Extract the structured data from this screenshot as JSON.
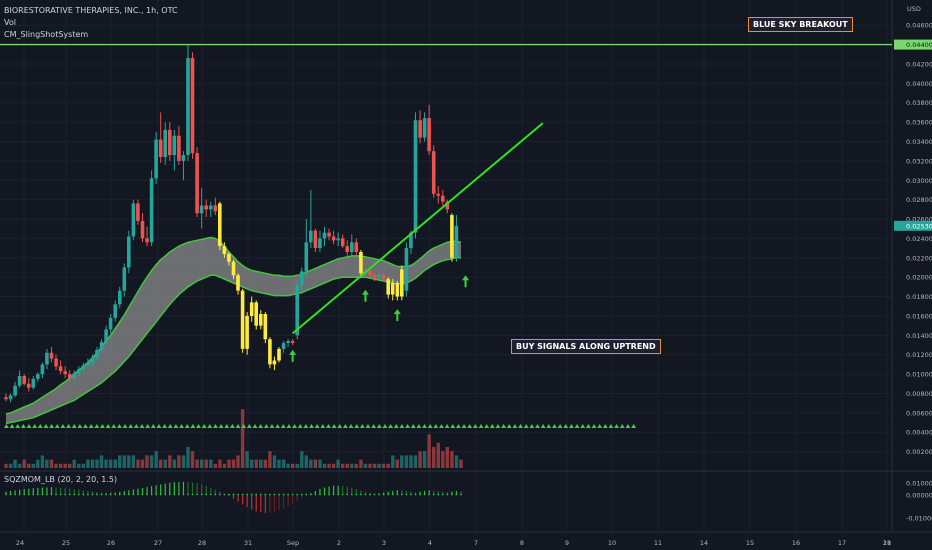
{
  "header": {
    "symbol_line": "BIORESTORATIVE THERAPIES, INC., 1h, OTC",
    "indicator_vol": "Vol",
    "indicator_sling": "CM_SlingShotSystem",
    "currency": "USD"
  },
  "annotations": {
    "top_right": "BLUE SKY BREAKOUT",
    "middle": "BUY SIGNALS ALONG UPTREND"
  },
  "lower_pane": {
    "label": "SQZMOM_LB (20, 2, 20, 1.5)",
    "ticks": [
      "0.010000",
      "0.000000",
      "-0.010000"
    ]
  },
  "colors": {
    "background": "#131722",
    "up": "#26a69a",
    "down": "#ef5350",
    "signal": "#ffeb3b",
    "band_fill": "#8c8c8c",
    "band_edge": "#43c43f",
    "trend": "#34e01f",
    "resistance": "#7ad66e",
    "price_tag": "#26a69a",
    "triangle": "#3ad33a"
  },
  "chart_data": {
    "type": "candlestick",
    "title": "",
    "x_ticks": [
      "24",
      "25",
      "26",
      "27",
      "28",
      "31",
      "Sep",
      "2",
      "3",
      "4",
      "7",
      "8",
      "9",
      "10",
      "11",
      "14",
      "15",
      "16",
      "17",
      "18",
      "21"
    ],
    "y_ticks": [
      "0.046000",
      "0.044000",
      "0.042000",
      "0.040000",
      "0.038000",
      "0.036000",
      "0.034000",
      "0.032000",
      "0.030000",
      "0.028000",
      "0.026000",
      "0.024000",
      "0.022000",
      "0.020000",
      "0.018000",
      "0.016000",
      "0.014000",
      "0.012000",
      "0.010000",
      "0.008000",
      "0.006000",
      "0.004000",
      "0.002000"
    ],
    "ylim": [
      0.0,
      0.0486
    ],
    "resistance_level": 0.044,
    "resistance_label": "0.044000",
    "last_price_label": "0.025300",
    "candles": [
      [
        0.0076,
        0.008,
        0.0072,
        0.0074,
        "n"
      ],
      [
        0.0074,
        0.008,
        0.0071,
        0.0078,
        "n"
      ],
      [
        0.0078,
        0.0092,
        0.0076,
        0.0088,
        "n"
      ],
      [
        0.0088,
        0.0104,
        0.0086,
        0.0098,
        "n"
      ],
      [
        0.0098,
        0.01,
        0.0088,
        0.009,
        "n"
      ],
      [
        0.009,
        0.0096,
        0.0082,
        0.0086,
        "n"
      ],
      [
        0.0086,
        0.0098,
        0.0084,
        0.0095,
        "n"
      ],
      [
        0.0095,
        0.0102,
        0.0092,
        0.01,
        "n"
      ],
      [
        0.01,
        0.0112,
        0.0096,
        0.011,
        "n"
      ],
      [
        0.011,
        0.0126,
        0.0105,
        0.0122,
        "n"
      ],
      [
        0.0122,
        0.0128,
        0.0112,
        0.0116,
        "n"
      ],
      [
        0.0116,
        0.012,
        0.0104,
        0.0108,
        "n"
      ],
      [
        0.0108,
        0.0114,
        0.01,
        0.0103,
        "n"
      ],
      [
        0.0103,
        0.0108,
        0.0096,
        0.01,
        "n"
      ],
      [
        0.01,
        0.0104,
        0.0092,
        0.0096,
        "n"
      ],
      [
        0.0096,
        0.0104,
        0.0093,
        0.0101,
        "n"
      ],
      [
        0.0101,
        0.0108,
        0.0098,
        0.0105,
        "n"
      ],
      [
        0.0105,
        0.0112,
        0.0102,
        0.0109,
        "n"
      ],
      [
        0.0109,
        0.0116,
        0.0106,
        0.0112,
        "n"
      ],
      [
        0.0112,
        0.012,
        0.0108,
        0.0117,
        "n"
      ],
      [
        0.0117,
        0.0128,
        0.0114,
        0.0125,
        "n"
      ],
      [
        0.0125,
        0.0136,
        0.0122,
        0.0133,
        "n"
      ],
      [
        0.0133,
        0.015,
        0.013,
        0.0146,
        "n"
      ],
      [
        0.0146,
        0.0162,
        0.0142,
        0.0158,
        "n"
      ],
      [
        0.0158,
        0.0176,
        0.0154,
        0.0172,
        "n"
      ],
      [
        0.0172,
        0.019,
        0.0168,
        0.0186,
        "n"
      ],
      [
        0.0186,
        0.0214,
        0.018,
        0.021,
        "n"
      ],
      [
        0.021,
        0.0248,
        0.0204,
        0.0242,
        "n"
      ],
      [
        0.0242,
        0.028,
        0.0238,
        0.0276,
        "n"
      ],
      [
        0.0276,
        0.028,
        0.0254,
        0.0258,
        "n"
      ],
      [
        0.0258,
        0.0266,
        0.0236,
        0.024,
        "n"
      ],
      [
        0.024,
        0.0252,
        0.0232,
        0.0236,
        "n"
      ],
      [
        0.0236,
        0.031,
        0.0232,
        0.0302,
        "n"
      ],
      [
        0.0302,
        0.035,
        0.0296,
        0.0342,
        "n"
      ],
      [
        0.0342,
        0.037,
        0.0318,
        0.0324,
        "n"
      ],
      [
        0.0324,
        0.036,
        0.0316,
        0.0352,
        "n"
      ],
      [
        0.0352,
        0.036,
        0.032,
        0.0326,
        "n"
      ],
      [
        0.0326,
        0.0352,
        0.031,
        0.0346,
        "n"
      ],
      [
        0.0346,
        0.0356,
        0.0316,
        0.032,
        "n"
      ],
      [
        0.032,
        0.033,
        0.03,
        0.0326,
        "n"
      ],
      [
        0.0326,
        0.044,
        0.032,
        0.0426,
        "n"
      ],
      [
        0.0426,
        0.0432,
        0.0322,
        0.0328,
        "n"
      ],
      [
        0.0328,
        0.0334,
        0.0262,
        0.0266,
        "n"
      ],
      [
        0.0266,
        0.0292,
        0.025,
        0.0274,
        "n"
      ],
      [
        0.0274,
        0.028,
        0.0262,
        0.027,
        "n"
      ],
      [
        0.027,
        0.0278,
        0.0262,
        0.0274,
        "n"
      ],
      [
        0.0274,
        0.0282,
        0.0264,
        0.0268,
        "n"
      ],
      [
        0.0276,
        0.0278,
        0.0228,
        0.0232,
        "y"
      ],
      [
        0.0232,
        0.0236,
        0.022,
        0.0224,
        "y"
      ],
      [
        0.0224,
        0.0226,
        0.0212,
        0.0216,
        "y"
      ],
      [
        0.0216,
        0.0218,
        0.0198,
        0.0202,
        "y"
      ],
      [
        0.0202,
        0.0204,
        0.0182,
        0.0186,
        "y"
      ],
      [
        0.0186,
        0.0188,
        0.0122,
        0.0126,
        "y"
      ],
      [
        0.0126,
        0.0164,
        0.012,
        0.016,
        "y"
      ],
      [
        0.016,
        0.018,
        0.0154,
        0.0174,
        "y"
      ],
      [
        0.0174,
        0.0176,
        0.0146,
        0.015,
        "y"
      ],
      [
        0.015,
        0.0166,
        0.0146,
        0.0162,
        "y"
      ],
      [
        0.0162,
        0.0164,
        0.0132,
        0.0136,
        "y"
      ],
      [
        0.0136,
        0.0138,
        0.0106,
        0.011,
        "y"
      ],
      [
        0.011,
        0.0118,
        0.0104,
        0.0114,
        "y"
      ],
      [
        0.0114,
        0.0128,
        0.0112,
        0.0126,
        "y"
      ],
      [
        0.0126,
        0.0134,
        0.0122,
        0.0132,
        "n"
      ],
      [
        0.0132,
        0.0136,
        0.0128,
        0.0134,
        "n"
      ],
      [
        0.0134,
        0.0136,
        0.013,
        0.0132,
        "n"
      ],
      [
        0.014,
        0.0198,
        0.0136,
        0.0192,
        "n"
      ],
      [
        0.0192,
        0.021,
        0.0186,
        0.0206,
        "n"
      ],
      [
        0.0206,
        0.026,
        0.02,
        0.0236,
        "n"
      ],
      [
        0.0236,
        0.029,
        0.023,
        0.0248,
        "n"
      ],
      [
        0.0248,
        0.025,
        0.0226,
        0.023,
        "n"
      ],
      [
        0.023,
        0.0248,
        0.0226,
        0.024,
        "n"
      ],
      [
        0.024,
        0.0252,
        0.0232,
        0.0246,
        "n"
      ],
      [
        0.0246,
        0.025,
        0.0238,
        0.0242,
        "n"
      ],
      [
        0.0242,
        0.0248,
        0.0234,
        0.0238,
        "n"
      ],
      [
        0.0238,
        0.0246,
        0.0232,
        0.024,
        "n"
      ],
      [
        0.024,
        0.0244,
        0.023,
        0.0232,
        "n"
      ],
      [
        0.0232,
        0.0238,
        0.0222,
        0.0226,
        "n"
      ],
      [
        0.0226,
        0.0244,
        0.0222,
        0.0236,
        "n"
      ],
      [
        0.0236,
        0.024,
        0.0222,
        0.0226,
        "n"
      ],
      [
        0.0226,
        0.0228,
        0.02,
        0.0204,
        "y"
      ],
      [
        0.0204,
        0.021,
        0.02,
        0.0206,
        "n"
      ],
      [
        0.0206,
        0.0208,
        0.02,
        0.0202,
        "n"
      ],
      [
        0.0202,
        0.0204,
        0.0196,
        0.02,
        "n"
      ],
      [
        0.02,
        0.0204,
        0.0198,
        0.0202,
        "n"
      ],
      [
        0.0202,
        0.0204,
        0.0196,
        0.0198,
        "n"
      ],
      [
        0.0198,
        0.02,
        0.0178,
        0.0182,
        "y"
      ],
      [
        0.0182,
        0.0198,
        0.0176,
        0.0194,
        "y"
      ],
      [
        0.0194,
        0.0196,
        0.0176,
        0.018,
        "y"
      ],
      [
        0.018,
        0.0212,
        0.0176,
        0.0208,
        "y"
      ],
      [
        0.0186,
        0.0236,
        0.018,
        0.023,
        "n"
      ],
      [
        0.023,
        0.0248,
        0.0224,
        0.0246,
        "n"
      ],
      [
        0.0246,
        0.037,
        0.024,
        0.0362,
        "n"
      ],
      [
        0.0362,
        0.0372,
        0.0338,
        0.0344,
        "n"
      ],
      [
        0.0344,
        0.037,
        0.034,
        0.0364,
        "n"
      ],
      [
        0.0364,
        0.0378,
        0.0326,
        0.033,
        "n"
      ],
      [
        0.033,
        0.0336,
        0.0282,
        0.0286,
        "n"
      ],
      [
        0.0286,
        0.0294,
        0.0276,
        0.0284,
        "n"
      ],
      [
        0.0284,
        0.029,
        0.0274,
        0.0278,
        "n"
      ],
      [
        0.0278,
        0.028,
        0.0266,
        0.027,
        "n"
      ],
      [
        0.0264,
        0.0266,
        0.0216,
        0.022,
        "y"
      ],
      [
        0.022,
        0.0264,
        0.0216,
        0.0253,
        "n"
      ]
    ],
    "volume": [
      1,
      1,
      2,
      1,
      2,
      1,
      1,
      2,
      3,
      2,
      2,
      1,
      1,
      1,
      1,
      2,
      1,
      1,
      2,
      2,
      2,
      3,
      2,
      2,
      2,
      3,
      3,
      3,
      3,
      2,
      2,
      3,
      3,
      4,
      2,
      2,
      3,
      2,
      3,
      3,
      5,
      4,
      2,
      2,
      2,
      2,
      1,
      2,
      1,
      2,
      2,
      3,
      14,
      4,
      2,
      2,
      2,
      2,
      4,
      3,
      2,
      2,
      1,
      1,
      1,
      4,
      3,
      2,
      2,
      2,
      1,
      1,
      1,
      2,
      1,
      1,
      1,
      1,
      2,
      1,
      1,
      1,
      1,
      1,
      1,
      3,
      2,
      3,
      3,
      3,
      3,
      4,
      4,
      8,
      5,
      6,
      4,
      5,
      4,
      3,
      2
    ],
    "band_upper": [
      0.0059,
      0.006,
      0.0062,
      0.0064,
      0.0066,
      0.0068,
      0.007,
      0.0073,
      0.0076,
      0.0079,
      0.0082,
      0.0085,
      0.0089,
      0.0092,
      0.0096,
      0.01,
      0.0104,
      0.0108,
      0.0112,
      0.0117,
      0.0122,
      0.0128,
      0.0134,
      0.014,
      0.0147,
      0.0154,
      0.0161,
      0.0169,
      0.0177,
      0.0185,
      0.0193,
      0.02,
      0.0207,
      0.0213,
      0.0218,
      0.0222,
      0.0226,
      0.0229,
      0.0232,
      0.0234,
      0.0236,
      0.0237,
      0.0238,
      0.0239,
      0.024,
      0.0241,
      0.024,
      0.0237,
      0.0232,
      0.0226,
      0.0221,
      0.0216,
      0.0212,
      0.0209,
      0.0207,
      0.0206,
      0.0205,
      0.0204,
      0.0203,
      0.0202,
      0.0202,
      0.0201,
      0.0201,
      0.0201,
      0.0202,
      0.0203,
      0.0205,
      0.0207,
      0.0209,
      0.0211,
      0.0213,
      0.0215,
      0.0217,
      0.0219,
      0.022,
      0.0221,
      0.0222,
      0.0222,
      0.0222,
      0.0221,
      0.022,
      0.0219,
      0.0218,
      0.0217,
      0.0215,
      0.0213,
      0.0211,
      0.0211,
      0.0211,
      0.0212,
      0.0215,
      0.0219,
      0.0223,
      0.0227,
      0.023,
      0.0232,
      0.0234,
      0.0236,
      0.0237,
      0.0237,
      0.0236
    ],
    "band_lower": [
      0.0049,
      0.005,
      0.0051,
      0.0052,
      0.0053,
      0.0054,
      0.0055,
      0.0057,
      0.0059,
      0.0061,
      0.0063,
      0.0065,
      0.0067,
      0.0069,
      0.0071,
      0.0073,
      0.0076,
      0.0079,
      0.0082,
      0.0085,
      0.0088,
      0.0091,
      0.0095,
      0.0099,
      0.0103,
      0.0108,
      0.0113,
      0.0118,
      0.0124,
      0.013,
      0.0136,
      0.0142,
      0.0148,
      0.0154,
      0.016,
      0.0166,
      0.0172,
      0.0177,
      0.0182,
      0.0186,
      0.019,
      0.0193,
      0.0196,
      0.0198,
      0.02,
      0.0202,
      0.0202,
      0.02,
      0.0198,
      0.0196,
      0.0194,
      0.0192,
      0.019,
      0.0188,
      0.0186,
      0.0185,
      0.0184,
      0.0183,
      0.0182,
      0.0181,
      0.0181,
      0.0181,
      0.0181,
      0.0182,
      0.0183,
      0.0184,
      0.0186,
      0.0188,
      0.019,
      0.0192,
      0.0194,
      0.0196,
      0.0198,
      0.0199,
      0.02,
      0.02,
      0.02,
      0.02,
      0.02,
      0.02,
      0.0199,
      0.0198,
      0.0197,
      0.0196,
      0.0195,
      0.0194,
      0.0193,
      0.0193,
      0.0194,
      0.0196,
      0.0199,
      0.0203,
      0.0207,
      0.021,
      0.0213,
      0.0215,
      0.0217,
      0.0218,
      0.0219,
      0.022,
      0.022
    ],
    "buy_signals": [
      {
        "index": 63,
        "price": 0.0124
      },
      {
        "index": 79,
        "price": 0.0186
      },
      {
        "index": 86,
        "price": 0.0166
      },
      {
        "index": 101,
        "price": 0.0201
      }
    ],
    "trend_line": [
      [
        63,
        0.0142
      ],
      [
        118,
        0.0359
      ]
    ],
    "squeeze_triangles": 112,
    "momentum": [
      0.002,
      0.0025,
      0.003,
      0.0035,
      0.004,
      0.0043,
      0.0046,
      0.0048,
      0.005,
      0.0051,
      0.0052,
      0.005,
      0.0048,
      0.0045,
      0.0042,
      0.0038,
      0.0034,
      0.003,
      0.0026,
      0.0022,
      0.0018,
      0.0014,
      0.0012,
      0.0012,
      0.0014,
      0.0018,
      0.0024,
      0.003,
      0.0036,
      0.0042,
      0.0048,
      0.0054,
      0.006,
      0.0066,
      0.0072,
      0.0078,
      0.0084,
      0.0088,
      0.009,
      0.0091,
      0.009,
      0.0086,
      0.008,
      0.0072,
      0.0062,
      0.005,
      0.0036,
      0.002,
      0.0004,
      -0.0012,
      -0.003,
      -0.005,
      -0.007,
      -0.009,
      -0.0108,
      -0.012,
      -0.0128,
      -0.0132,
      -0.013,
      -0.0124,
      -0.0114,
      -0.01,
      -0.0084,
      -0.0066,
      -0.0046,
      -0.0026,
      -0.0008,
      0.001,
      0.0026,
      0.004,
      0.005,
      0.0058,
      0.0062,
      0.0063,
      0.0061,
      0.0056,
      0.0048,
      0.0038,
      0.0028,
      0.0018,
      0.001,
      0.0006,
      0.0008,
      0.0014,
      0.002,
      0.0026,
      0.0032,
      0.003,
      0.0026,
      0.002,
      0.0014,
      0.002,
      0.0026,
      0.003,
      0.0028,
      0.0024,
      0.002,
      0.0016,
      0.002,
      0.0024,
      0.0022
    ]
  }
}
